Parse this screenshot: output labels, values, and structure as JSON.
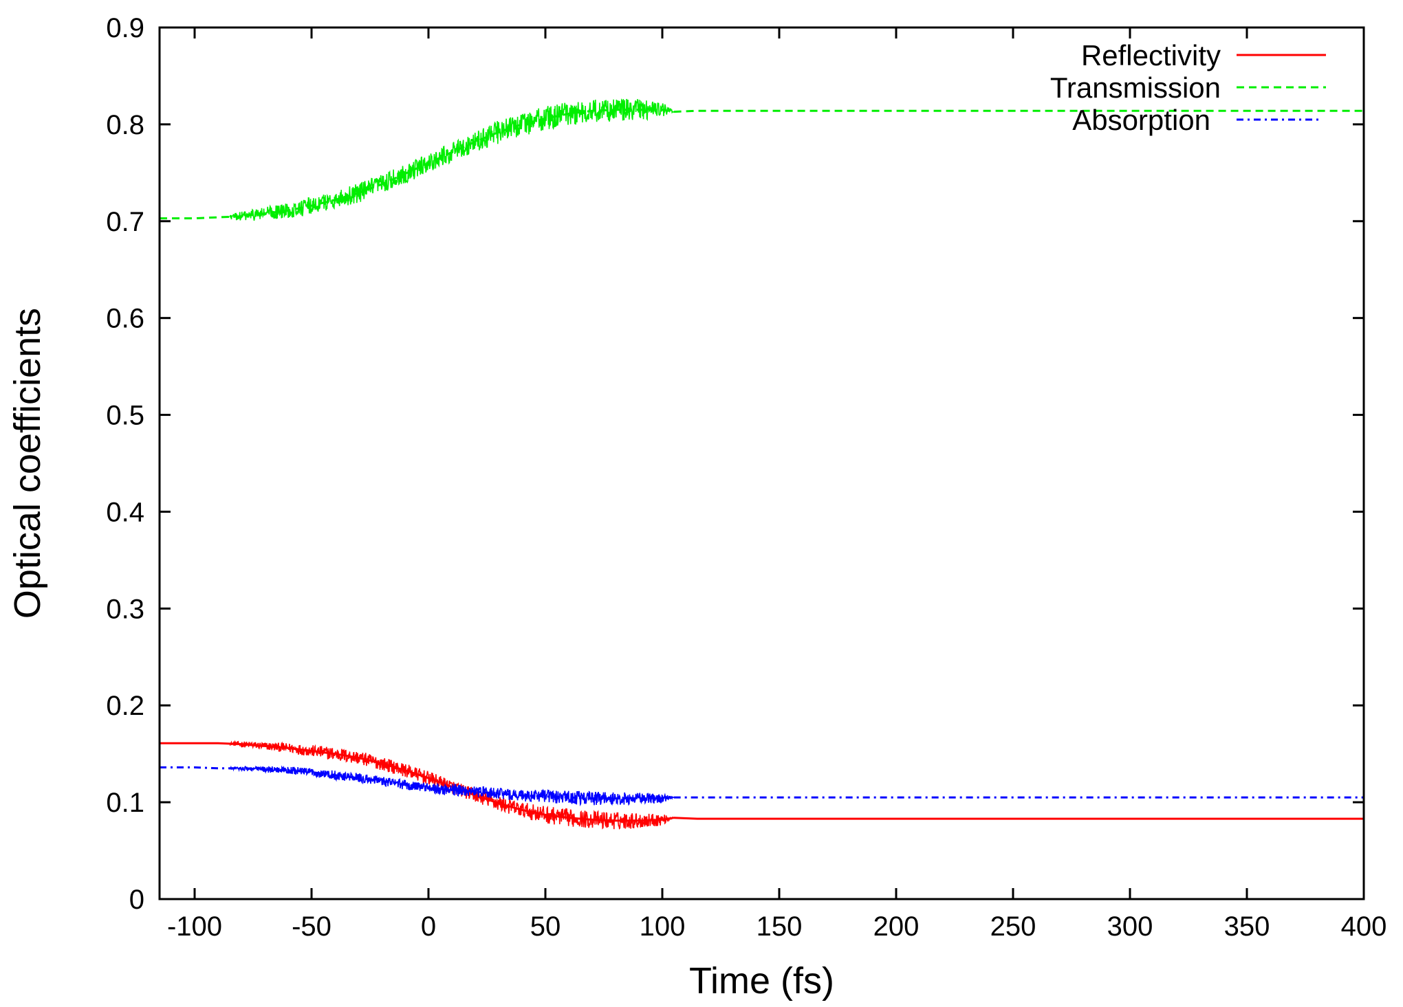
{
  "chart_data": {
    "type": "line",
    "title": "",
    "xlabel": "Time (fs)",
    "ylabel": "Optical coefficients",
    "xlim": [
      -115,
      400
    ],
    "ylim": [
      0,
      0.9
    ],
    "xticks": [
      -100,
      -50,
      0,
      50,
      100,
      150,
      200,
      250,
      300,
      350,
      400
    ],
    "xtick_labels": [
      "-100",
      "-50",
      "0",
      "50",
      "100",
      "150",
      "200",
      "250",
      "300",
      "350",
      "400"
    ],
    "yticks": [
      0,
      0.1,
      0.2,
      0.3,
      0.4,
      0.5,
      0.6,
      0.7,
      0.8,
      0.9
    ],
    "ytick_labels": [
      "0",
      "0.1",
      "0.2",
      "0.3",
      "0.4",
      "0.5",
      "0.6",
      "0.7",
      "0.8",
      "0.9"
    ],
    "grid": false,
    "legend_position": "top-right",
    "series": [
      {
        "name": "Reflectivity",
        "color": "#ff0000",
        "line_style": "solid",
        "x": [
          -115,
          -100,
          -90,
          -80,
          -70,
          -60,
          -50,
          -40,
          -30,
          -20,
          -10,
          0,
          10,
          20,
          30,
          40,
          50,
          60,
          70,
          80,
          90,
          100,
          105,
          115,
          150,
          200,
          250,
          300,
          350,
          400
        ],
        "y": [
          0.161,
          0.161,
          0.161,
          0.16,
          0.158,
          0.156,
          0.153,
          0.15,
          0.146,
          0.14,
          0.133,
          0.125,
          0.116,
          0.107,
          0.099,
          0.092,
          0.087,
          0.084,
          0.082,
          0.081,
          0.081,
          0.082,
          0.084,
          0.083,
          0.083,
          0.083,
          0.083,
          0.083,
          0.083,
          0.083
        ],
        "noise": [
          0,
          0,
          0,
          0.003,
          0.004,
          0.005,
          0.006,
          0.007,
          0.007,
          0.007,
          0.007,
          0.007,
          0.007,
          0.007,
          0.008,
          0.008,
          0.009,
          0.009,
          0.009,
          0.009,
          0.008,
          0.006,
          0,
          0,
          0,
          0,
          0,
          0,
          0,
          0
        ]
      },
      {
        "name": "Transmission",
        "color": "#00ee00",
        "line_style": "dashed",
        "x": [
          -115,
          -100,
          -90,
          -80,
          -70,
          -60,
          -50,
          -40,
          -30,
          -20,
          -10,
          0,
          10,
          20,
          30,
          40,
          50,
          60,
          70,
          80,
          90,
          100,
          105,
          115,
          150,
          200,
          250,
          300,
          350,
          400
        ],
        "y": [
          0.703,
          0.703,
          0.704,
          0.705,
          0.708,
          0.711,
          0.716,
          0.722,
          0.729,
          0.738,
          0.749,
          0.76,
          0.771,
          0.782,
          0.792,
          0.8,
          0.806,
          0.811,
          0.814,
          0.815,
          0.815,
          0.815,
          0.813,
          0.814,
          0.814,
          0.814,
          0.814,
          0.814,
          0.814,
          0.814
        ],
        "noise": [
          0,
          0,
          0,
          0.005,
          0.007,
          0.008,
          0.009,
          0.009,
          0.01,
          0.01,
          0.01,
          0.01,
          0.01,
          0.011,
          0.012,
          0.012,
          0.013,
          0.013,
          0.012,
          0.012,
          0.011,
          0.008,
          0,
          0,
          0,
          0,
          0,
          0,
          0,
          0
        ]
      },
      {
        "name": "Absorption",
        "color": "#0000ff",
        "line_style": "dash-dot",
        "x": [
          -115,
          -100,
          -90,
          -80,
          -70,
          -60,
          -50,
          -40,
          -30,
          -20,
          -10,
          0,
          10,
          20,
          30,
          40,
          50,
          60,
          70,
          80,
          90,
          100,
          105,
          115,
          150,
          200,
          250,
          300,
          350,
          400
        ],
        "y": [
          0.136,
          0.136,
          0.135,
          0.135,
          0.134,
          0.133,
          0.131,
          0.128,
          0.125,
          0.122,
          0.118,
          0.115,
          0.113,
          0.111,
          0.109,
          0.107,
          0.106,
          0.105,
          0.104,
          0.104,
          0.104,
          0.104,
          0.105,
          0.105,
          0.105,
          0.105,
          0.105,
          0.105,
          0.105,
          0.105
        ],
        "noise": [
          0,
          0,
          0,
          0.002,
          0.003,
          0.004,
          0.004,
          0.005,
          0.005,
          0.005,
          0.005,
          0.005,
          0.006,
          0.006,
          0.006,
          0.006,
          0.007,
          0.007,
          0.007,
          0.007,
          0.006,
          0.005,
          0,
          0,
          0,
          0,
          0,
          0,
          0,
          0
        ]
      }
    ]
  }
}
